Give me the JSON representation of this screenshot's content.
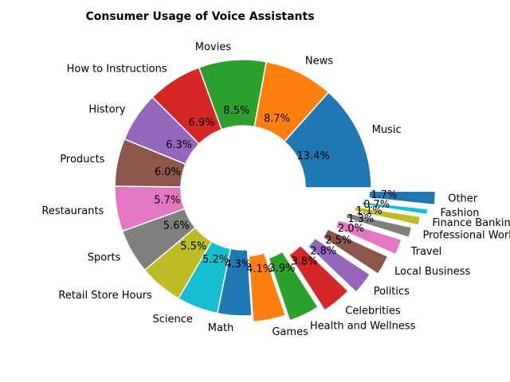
{
  "chart_data": {
    "type": "pie",
    "title": "Consumer Usage of Voice Assistants",
    "donut": true,
    "categories": [
      "Music",
      "News",
      "Movies",
      "How to Instructions",
      "History",
      "Products",
      "Restaurants",
      "Sports",
      "Retail Store Hours",
      "Science",
      "Math",
      "Games",
      "Health and Wellness",
      "Celebrities",
      "Politics",
      "Local Business",
      "Travel",
      "Professional Work",
      "Finance Banking Info",
      "Fashion",
      "Other"
    ],
    "values": [
      13.4,
      8.7,
      8.5,
      6.9,
      6.3,
      6.0,
      5.7,
      5.6,
      5.5,
      5.2,
      4.3,
      4.1,
      3.9,
      3.8,
      2.8,
      2.5,
      2.0,
      1.3,
      1.1,
      0.7,
      1.7
    ],
    "explode": [
      0,
      0,
      0,
      0,
      0,
      0,
      0,
      0,
      0,
      0,
      0,
      0.05,
      0.1,
      0.15,
      0.2,
      0.25,
      0.3,
      0.35,
      0.4,
      0.45,
      0.5
    ],
    "colors": [
      "#1f77b4",
      "#ff7f0e",
      "#2ca02c",
      "#d62728",
      "#9467bd",
      "#8c564b",
      "#e377c2",
      "#7f7f7f",
      "#bcbd22",
      "#17becf",
      "#1f77b4",
      "#ff7f0e",
      "#2ca02c",
      "#d62728",
      "#9467bd",
      "#8c564b",
      "#e377c2",
      "#7f7f7f",
      "#bcbd22",
      "#17becf",
      "#1f77b4"
    ],
    "pct_labels": [
      "13.4%",
      "8.7%",
      "8.5%",
      "6.9%",
      "6.3%",
      "6.0%",
      "5.7%",
      "5.6%",
      "5.5%",
      "5.2%",
      "4.3%",
      "4.1%",
      "3.9%",
      "3.8%",
      "2.8%",
      "2.5%",
      "2.0%",
      "1.3%",
      "1.1%",
      "0.7%",
      "1.7%"
    ],
    "start_angle_deg": 0,
    "legend": "none"
  }
}
